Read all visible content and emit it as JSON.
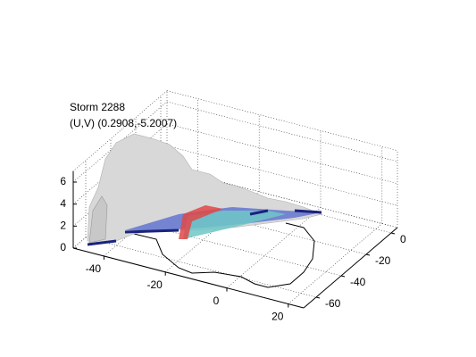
{
  "chart_data": {
    "type": "surface3d",
    "title": "Storm 2288",
    "subtitle": "(U,V) (0.2908,-5.2007)",
    "xlim": [
      -50,
      25
    ],
    "ylim": [
      -70,
      5
    ],
    "zlim": [
      0,
      7
    ],
    "xticks": [
      -40,
      -20,
      0,
      20
    ],
    "yticks": [
      -60,
      -40,
      -20,
      0
    ],
    "zticks": [
      0,
      2,
      4,
      6
    ],
    "grid": true
  }
}
